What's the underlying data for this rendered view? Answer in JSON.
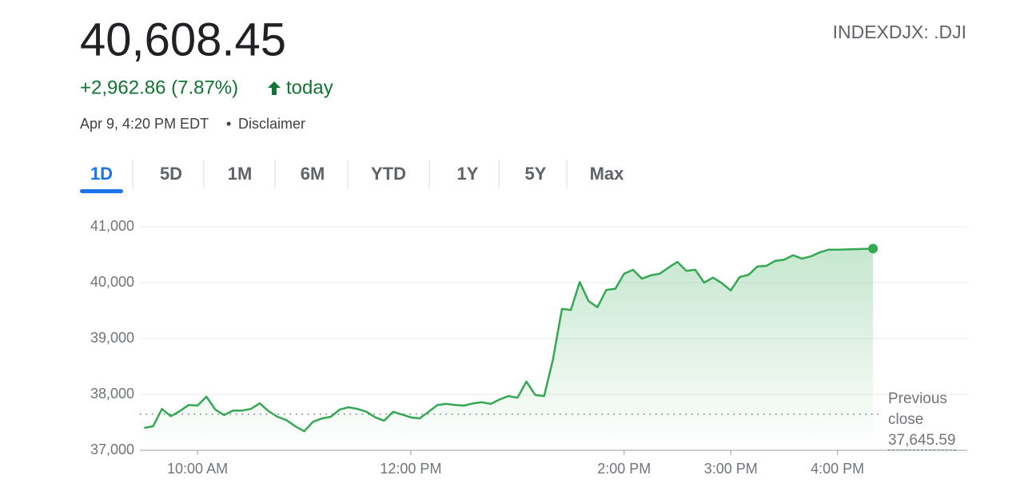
{
  "header": {
    "price": "40,608.45",
    "change": "+2,962.86 (7.87%)",
    "change_suffix": "today",
    "timestamp": "Apr 9, 4:20 PM EDT",
    "disclaimer": "Disclaimer",
    "ticker": "INDEXDJX: .DJI"
  },
  "tabs": {
    "items": [
      "1D",
      "5D",
      "1M",
      "6M",
      "YTD",
      "1Y",
      "5Y",
      "Max"
    ],
    "selected": "1D"
  },
  "chart_data": {
    "type": "line",
    "color": "#34a853",
    "area": true,
    "grid": true,
    "x": [
      570,
      575,
      580,
      585,
      590,
      595,
      600,
      605,
      610,
      615,
      620,
      625,
      630,
      635,
      640,
      645,
      650,
      655,
      660,
      665,
      670,
      675,
      680,
      685,
      690,
      695,
      700,
      705,
      710,
      715,
      720,
      725,
      730,
      735,
      740,
      745,
      750,
      755,
      760,
      765,
      770,
      775,
      780,
      785,
      790,
      795,
      800,
      805,
      810,
      815,
      820,
      825,
      830,
      835,
      840,
      845,
      850,
      855,
      860,
      865,
      870,
      875,
      880,
      885,
      890,
      895,
      900,
      905,
      910,
      915,
      920,
      925,
      930,
      935,
      940,
      945,
      950,
      955,
      960,
      980
    ],
    "values": [
      37400,
      37430,
      37740,
      37610,
      37700,
      37810,
      37800,
      37960,
      37730,
      37630,
      37710,
      37710,
      37740,
      37840,
      37700,
      37600,
      37540,
      37430,
      37340,
      37510,
      37570,
      37600,
      37730,
      37770,
      37740,
      37690,
      37590,
      37530,
      37690,
      37640,
      37590,
      37570,
      37690,
      37810,
      37830,
      37810,
      37800,
      37840,
      37860,
      37830,
      37910,
      37970,
      37940,
      38230,
      37990,
      37970,
      38630,
      39530,
      39510,
      40010,
      39670,
      39560,
      39870,
      39890,
      40160,
      40230,
      40070,
      40130,
      40160,
      40270,
      40370,
      40210,
      40230,
      40000,
      40090,
      39990,
      39860,
      40100,
      40140,
      40290,
      40300,
      40390,
      40410,
      40490,
      40430,
      40470,
      40540,
      40590,
      40590,
      40608.45
    ],
    "xlim": [
      567.6,
      1033
    ],
    "xticks": [
      {
        "value": 600,
        "label": "10:00 AM"
      },
      {
        "value": 720,
        "label": "12:00 PM"
      },
      {
        "value": 840,
        "label": "2:00 PM"
      },
      {
        "value": 900,
        "label": "3:00 PM"
      },
      {
        "value": 960,
        "label": "4:00 PM"
      }
    ],
    "ylim": [
      37000,
      41000
    ],
    "yticks": [
      {
        "value": 37000,
        "label": "37,000"
      },
      {
        "value": 38000,
        "label": "38,000"
      },
      {
        "value": 39000,
        "label": "39,000"
      },
      {
        "value": 40000,
        "label": "40,000"
      },
      {
        "value": 41000,
        "label": "41,000"
      }
    ],
    "previous_close": {
      "text": "Previous close",
      "value": 37645.59,
      "label": "37,645.59"
    }
  }
}
